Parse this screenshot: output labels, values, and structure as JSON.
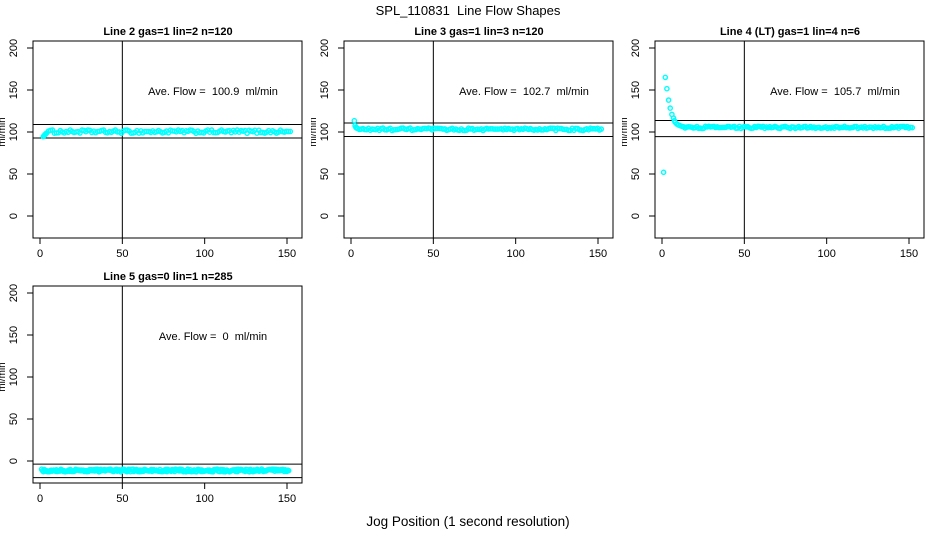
{
  "figure": {
    "title": "SPL_110831  Line Flow Shapes",
    "xlabel": "Jog Position (1 second resolution)",
    "ylabel": "ml/min",
    "point_color": "#00FFFF",
    "axis_color": "#000000",
    "background": "#FFFFFF"
  },
  "chart_data": [
    {
      "type": "scatter",
      "title": "Line 2 gas=1 lin=2 n=120",
      "annotation": "Ave. Flow =  100.9  ml/min",
      "ave_flow_ml_min": 100.9,
      "n": 120,
      "xlim": [
        0,
        150
      ],
      "ylim": [
        0,
        200
      ],
      "xticks": [
        0,
        50,
        100,
        150
      ],
      "yticks": [
        0,
        50,
        100,
        150,
        200
      ],
      "ylabel": "ml/min",
      "vline_x": 50,
      "hlines": [
        108.9,
        92.9
      ],
      "series": {
        "transient_points": [
          [
            2,
            94.5
          ],
          [
            2.5,
            95.6
          ],
          [
            3,
            96.8
          ],
          [
            3.5,
            97.8
          ]
        ],
        "steady": {
          "x_from": 4,
          "x_to": 152,
          "value": 100.4,
          "jitter": 2.0,
          "count": 125
        }
      }
    },
    {
      "type": "scatter",
      "title": "Line 3 gas=1 lin=3 n=120",
      "annotation": "Ave. Flow =  102.7  ml/min",
      "ave_flow_ml_min": 102.7,
      "n": 120,
      "xlim": [
        0,
        150
      ],
      "ylim": [
        0,
        200
      ],
      "xticks": [
        0,
        50,
        100,
        150
      ],
      "yticks": [
        0,
        50,
        100,
        150,
        200
      ],
      "ylabel": "ml/min",
      "vline_x": 50,
      "hlines": [
        110.7,
        94.7
      ],
      "series": {
        "transient_points": [
          [
            2,
            113.5
          ],
          [
            2.5,
            107.5
          ],
          [
            3,
            105.5
          ],
          [
            3.5,
            104.5
          ]
        ],
        "steady": {
          "x_from": 4,
          "x_to": 152,
          "value": 103.2,
          "jitter": 1.5,
          "count": 135
        }
      }
    },
    {
      "type": "scatter",
      "title": "Line 4 (LT) gas=1 lin=4 n=6",
      "annotation": "Ave. Flow =  105.7  ml/min",
      "ave_flow_ml_min": 105.7,
      "n": 6,
      "xlim": [
        0,
        150
      ],
      "ylim": [
        0,
        200
      ],
      "xticks": [
        0,
        50,
        100,
        150
      ],
      "yticks": [
        0,
        50,
        100,
        150,
        200
      ],
      "ylabel": "ml/min",
      "vline_x": 50,
      "hlines": [
        113.7,
        94.5
      ],
      "series": {
        "transient_points": [
          [
            1,
            52
          ],
          [
            2,
            165
          ],
          [
            3,
            151.5
          ],
          [
            4,
            138
          ],
          [
            5,
            128.5
          ],
          [
            6,
            121
          ],
          [
            7,
            116.5
          ],
          [
            7.5,
            113.5
          ],
          [
            8,
            111.5
          ],
          [
            9,
            109.5
          ],
          [
            10,
            108.3
          ],
          [
            11,
            107.5
          ],
          [
            12,
            106.8
          ],
          [
            13,
            106.3
          ]
        ],
        "steady": {
          "x_from": 14,
          "x_to": 152,
          "value": 105.5,
          "jitter": 1.3,
          "count": 135
        }
      }
    },
    {
      "type": "scatter",
      "title": "Line 5 gas=0 lin=1 n=285",
      "annotation": "Ave. Flow =  0  ml/min",
      "ave_flow_ml_min": 0,
      "n": 285,
      "xlim": [
        0,
        150
      ],
      "ylim": [
        0,
        200
      ],
      "xticks": [
        0,
        50,
        100,
        150
      ],
      "yticks": [
        0,
        50,
        100,
        150,
        200
      ],
      "ylabel": "ml/min",
      "vline_x": 50,
      "hlines": [
        -3.75,
        -19.75
      ],
      "series": {
        "transient_points": [],
        "steady": {
          "x_from": 1,
          "x_to": 151,
          "value": -11.3,
          "jitter": 1.6,
          "count": 285
        }
      }
    }
  ]
}
